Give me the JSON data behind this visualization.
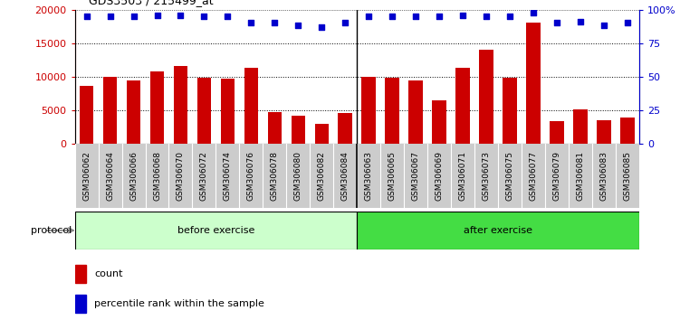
{
  "title": "GDS3503 / 215499_at",
  "categories": [
    "GSM306062",
    "GSM306064",
    "GSM306066",
    "GSM306068",
    "GSM306070",
    "GSM306072",
    "GSM306074",
    "GSM306076",
    "GSM306078",
    "GSM306080",
    "GSM306082",
    "GSM306084",
    "GSM306063",
    "GSM306065",
    "GSM306067",
    "GSM306069",
    "GSM306071",
    "GSM306073",
    "GSM306075",
    "GSM306077",
    "GSM306079",
    "GSM306081",
    "GSM306083",
    "GSM306085"
  ],
  "count_values": [
    8600,
    9950,
    9450,
    10750,
    11650,
    9850,
    9700,
    11350,
    4800,
    4150,
    2950,
    4550,
    10000,
    9850,
    9400,
    6500,
    11400,
    14000,
    9850,
    18100,
    3450,
    5150,
    3600,
    4000
  ],
  "percentile_values": [
    95,
    95,
    95,
    96,
    96,
    95,
    95,
    90,
    90,
    88,
    87,
    90,
    95,
    95,
    95,
    95,
    96,
    95,
    95,
    98,
    90,
    91,
    88,
    90
  ],
  "before_exercise_count": 12,
  "after_exercise_count": 12,
  "bar_color": "#cc0000",
  "dot_color": "#0000cc",
  "before_bg": "#ccffcc",
  "after_bg": "#44dd44",
  "xtick_bg": "#cccccc",
  "ylim_left": [
    0,
    20000
  ],
  "ylim_right": [
    0,
    100
  ],
  "yticks_left": [
    0,
    5000,
    10000,
    15000,
    20000
  ],
  "yticks_right": [
    0,
    25,
    50,
    75,
    100
  ],
  "ytick_labels_left": [
    "0",
    "5000",
    "10000",
    "15000",
    "20000"
  ],
  "ytick_labels_right": [
    "0",
    "25",
    "50",
    "75",
    "100%"
  ],
  "grid_values": [
    5000,
    10000,
    15000
  ],
  "protocol_label": "protocol",
  "before_label": "before exercise",
  "after_label": "after exercise",
  "legend_count_label": "count",
  "legend_pct_label": "percentile rank within the sample"
}
